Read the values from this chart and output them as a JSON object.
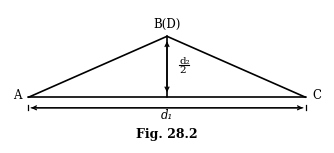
{
  "A": [
    0,
    0
  ],
  "C": [
    10,
    0
  ],
  "B": [
    5,
    2.2
  ],
  "mid": [
    5,
    0
  ],
  "label_A": "A",
  "label_C": "C",
  "label_B": "B(D)",
  "label_d1": "d₁",
  "label_d2_top": "d₂",
  "label_d2_bot": "2",
  "caption": "Fig. 28.2",
  "line_color": "#000000",
  "bg_color": "#ffffff",
  "figsize": [
    3.34,
    1.53
  ],
  "dpi": 100
}
